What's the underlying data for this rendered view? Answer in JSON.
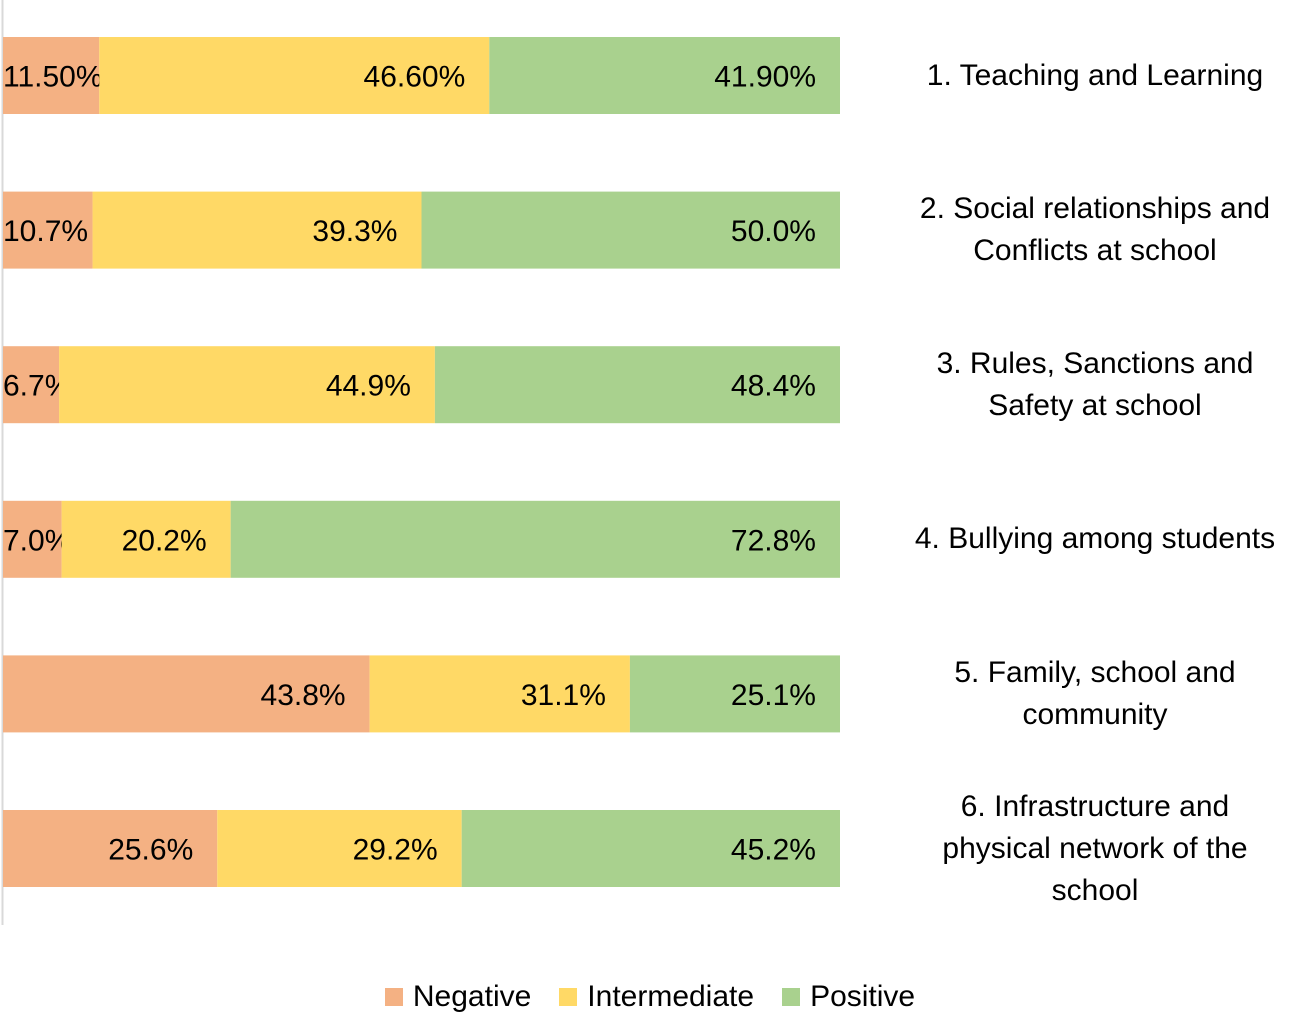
{
  "chart_data": {
    "type": "bar",
    "orientation": "horizontal",
    "stacked": "percent",
    "title": "",
    "xlabel": "",
    "ylabel": "",
    "xlim": [
      0,
      100
    ],
    "grid": false,
    "legend_position": "bottom",
    "categories": [
      "1. Teaching and Learning",
      "2. Social relationships and Conflicts at school",
      "3. Rules, Sanctions and Safety at school",
      "4. Bullying among students",
      "5. Family, school and community",
      "6. Infrastructure and physical network of the school"
    ],
    "category_label_lines": [
      [
        "1. Teaching and Learning"
      ],
      [
        "2. Social relationships and",
        "Conflicts at school"
      ],
      [
        "3. Rules, Sanctions and",
        "Safety at school"
      ],
      [
        "4. Bullying among students"
      ],
      [
        "5. Family, school and",
        "community"
      ],
      [
        "6. Infrastructure and",
        "physical network of the",
        "school"
      ]
    ],
    "series": [
      {
        "name": "Negative",
        "color": "#F4B183",
        "values": [
          11.5,
          10.7,
          6.7,
          7.0,
          43.8,
          25.6
        ],
        "labels": [
          "11.50%",
          "10.7%",
          "6.7%",
          "7.0%",
          "43.8%",
          "25.6%"
        ]
      },
      {
        "name": "Intermediate",
        "color": "#FFD966",
        "values": [
          46.6,
          39.3,
          44.9,
          20.2,
          31.1,
          29.2
        ],
        "labels": [
          "46.60%",
          "39.3%",
          "44.9%",
          "20.2%",
          "31.1%",
          "29.2%"
        ]
      },
      {
        "name": "Positive",
        "color": "#A9D18E",
        "values": [
          41.9,
          50.0,
          48.4,
          72.8,
          25.1,
          45.2
        ],
        "labels": [
          "41.90%",
          "50.0%",
          "48.4%",
          "72.8%",
          "25.1%",
          "45.2%"
        ]
      }
    ]
  }
}
